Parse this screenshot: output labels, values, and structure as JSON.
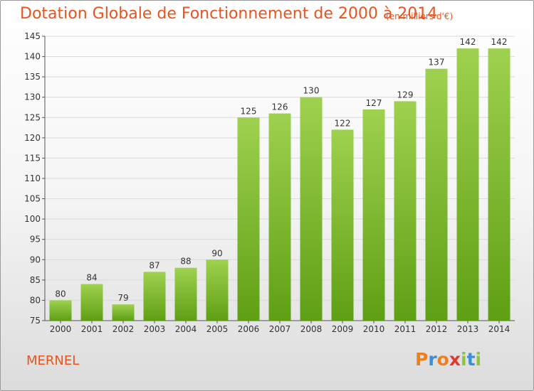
{
  "header": {
    "title": "Dotation Globale de Fonctionnement de 2000 à 2014",
    "unit_note": "(en milliers d'€)"
  },
  "footer": {
    "town": "MERNEL",
    "logo_text": "Proxiti"
  },
  "colors": {
    "title": "#e8531e",
    "bar_light": "#9ed14f",
    "bar_dark": "#5f9f14",
    "grid": "#d9d9d9",
    "logo_letters": [
      "#f07f1a",
      "#3a8fd6",
      "#f07f1a",
      "#e03a2f",
      "#8cc63f",
      "#3a8fd6",
      "#8cc63f"
    ]
  },
  "chart_data": {
    "type": "bar",
    "title": "Dotation Globale de Fonctionnement de 2000 à 2014",
    "subtitle": "(en milliers d'€)",
    "xlabel": "",
    "ylabel": "",
    "categories": [
      "2000",
      "2001",
      "2002",
      "2003",
      "2004",
      "2005",
      "2006",
      "2007",
      "2008",
      "2009",
      "2010",
      "2011",
      "2012",
      "2013",
      "2014"
    ],
    "values": [
      80,
      84,
      79,
      87,
      88,
      90,
      125,
      126,
      130,
      122,
      127,
      129,
      137,
      142,
      142
    ],
    "ylim": [
      75,
      145
    ],
    "yticks": [
      75,
      80,
      85,
      90,
      95,
      100,
      105,
      110,
      115,
      120,
      125,
      130,
      135,
      140,
      145
    ],
    "grid": true,
    "legend": "none"
  }
}
